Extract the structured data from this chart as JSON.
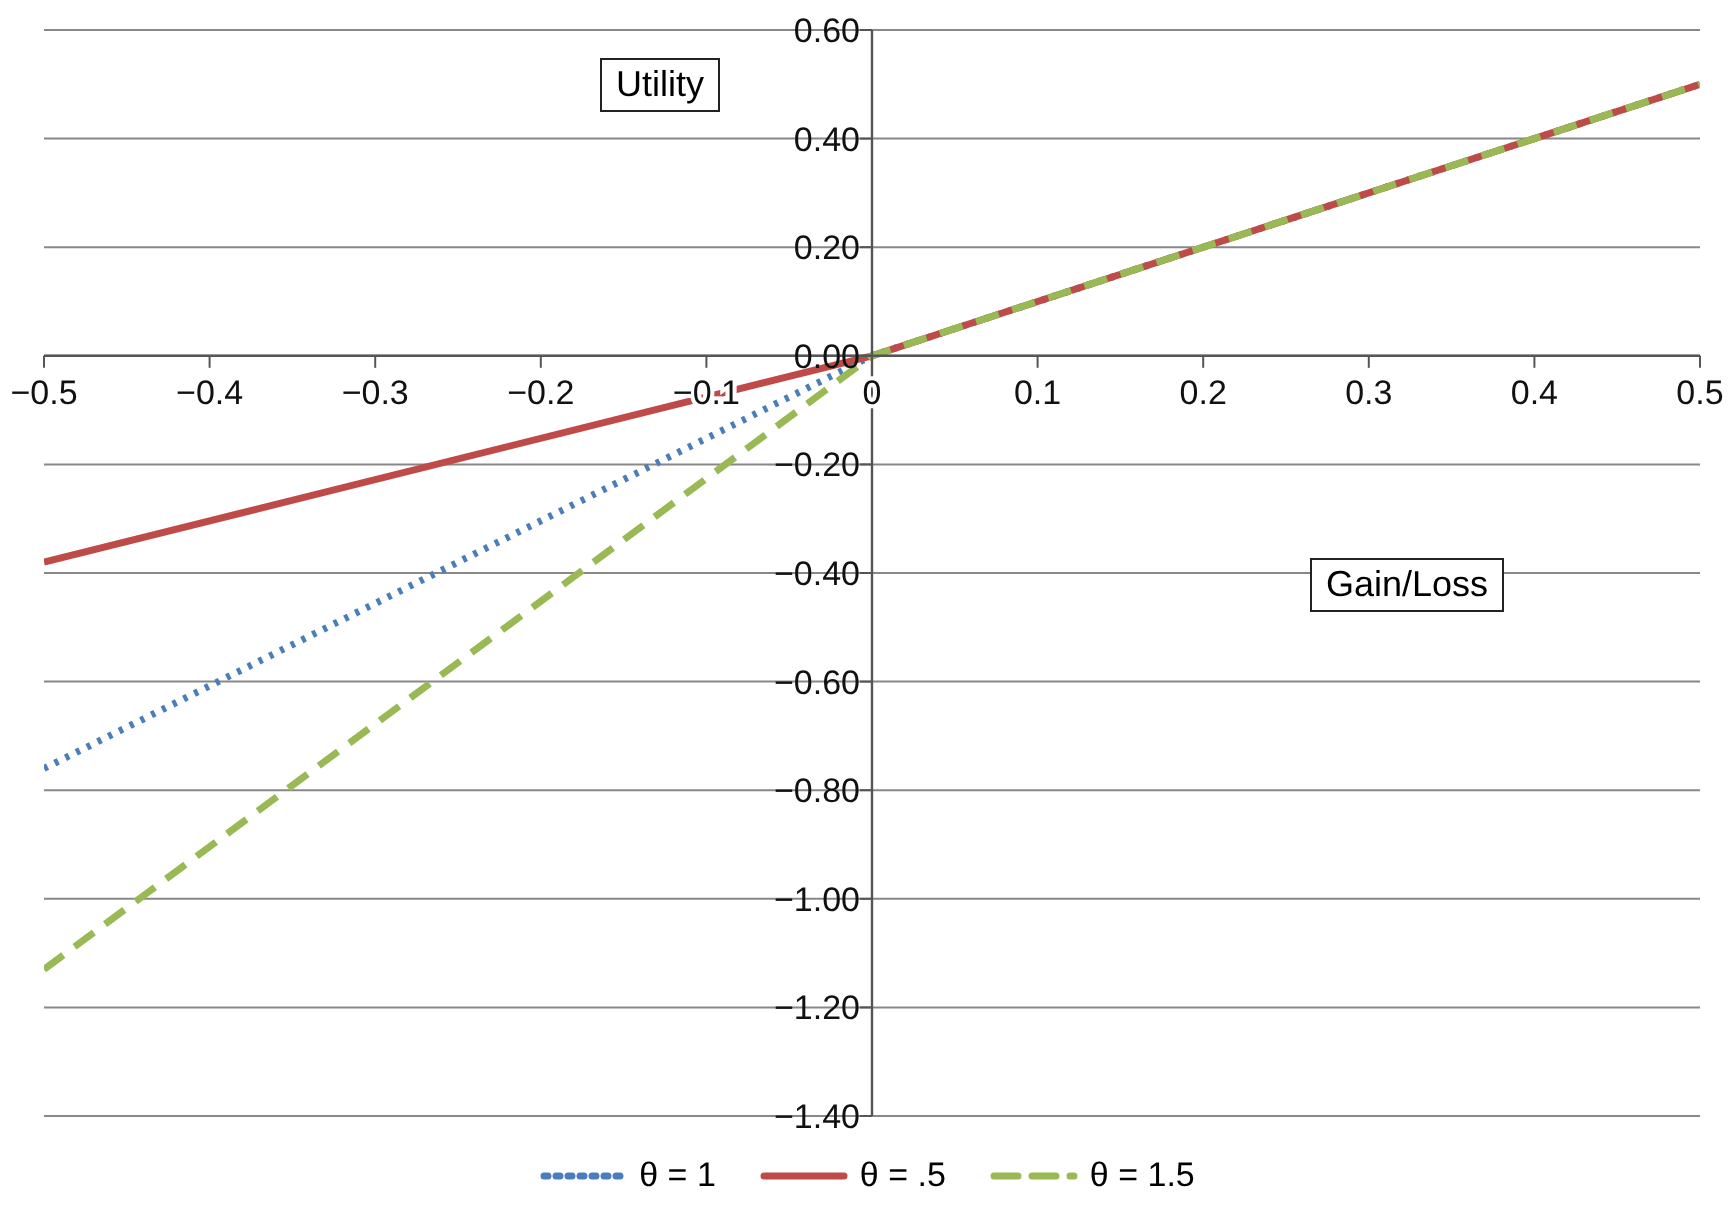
{
  "chart_data": {
    "type": "line",
    "xlabel": "Gain/Loss",
    "ylabel": "Utility",
    "x": [
      -0.5,
      0,
      0.5
    ],
    "series": [
      {
        "name": "θ = 1",
        "color": "#4a7ebb",
        "line_style": "dotted",
        "values": [
          -0.76,
          0,
          0.5
        ]
      },
      {
        "name": "θ = .5",
        "color": "#be4b48",
        "line_style": "solid",
        "values": [
          -0.38,
          0,
          0.5
        ]
      },
      {
        "name": "θ = 1.5",
        "color": "#98b954",
        "line_style": "dashed",
        "values": [
          -1.13,
          0,
          0.5
        ]
      }
    ],
    "xlim": [
      -0.5,
      0.5
    ],
    "xticks": [
      {
        "value": -0.5,
        "label": "−0.5"
      },
      {
        "value": -0.4,
        "label": "−0.4"
      },
      {
        "value": -0.3,
        "label": "−0.3"
      },
      {
        "value": -0.2,
        "label": "−0.2"
      },
      {
        "value": -0.1,
        "label": "−0.1"
      },
      0,
      0.1,
      0.2,
      0.3,
      0.4,
      0.5
    ],
    "ylim": [
      -1.4,
      0.6
    ],
    "yticks": [
      {
        "value": 0.6,
        "label": "0.60"
      },
      {
        "value": 0.4,
        "label": "0.40"
      },
      {
        "value": 0.2,
        "label": "0.20"
      },
      {
        "value": 0,
        "label": "0.00"
      },
      {
        "value": -0.2,
        "label": "−0.20"
      },
      {
        "value": -0.4,
        "label": "−0.40"
      },
      {
        "value": -0.6,
        "label": "−0.60"
      },
      {
        "value": -0.8,
        "label": "−0.80"
      },
      {
        "value": -1,
        "label": "−1.00"
      },
      {
        "value": -1.2,
        "label": "−1.20"
      },
      {
        "value": -1.4,
        "label": "−1.40"
      }
    ],
    "grid": "y",
    "legend": "bottom",
    "marker": "none"
  }
}
